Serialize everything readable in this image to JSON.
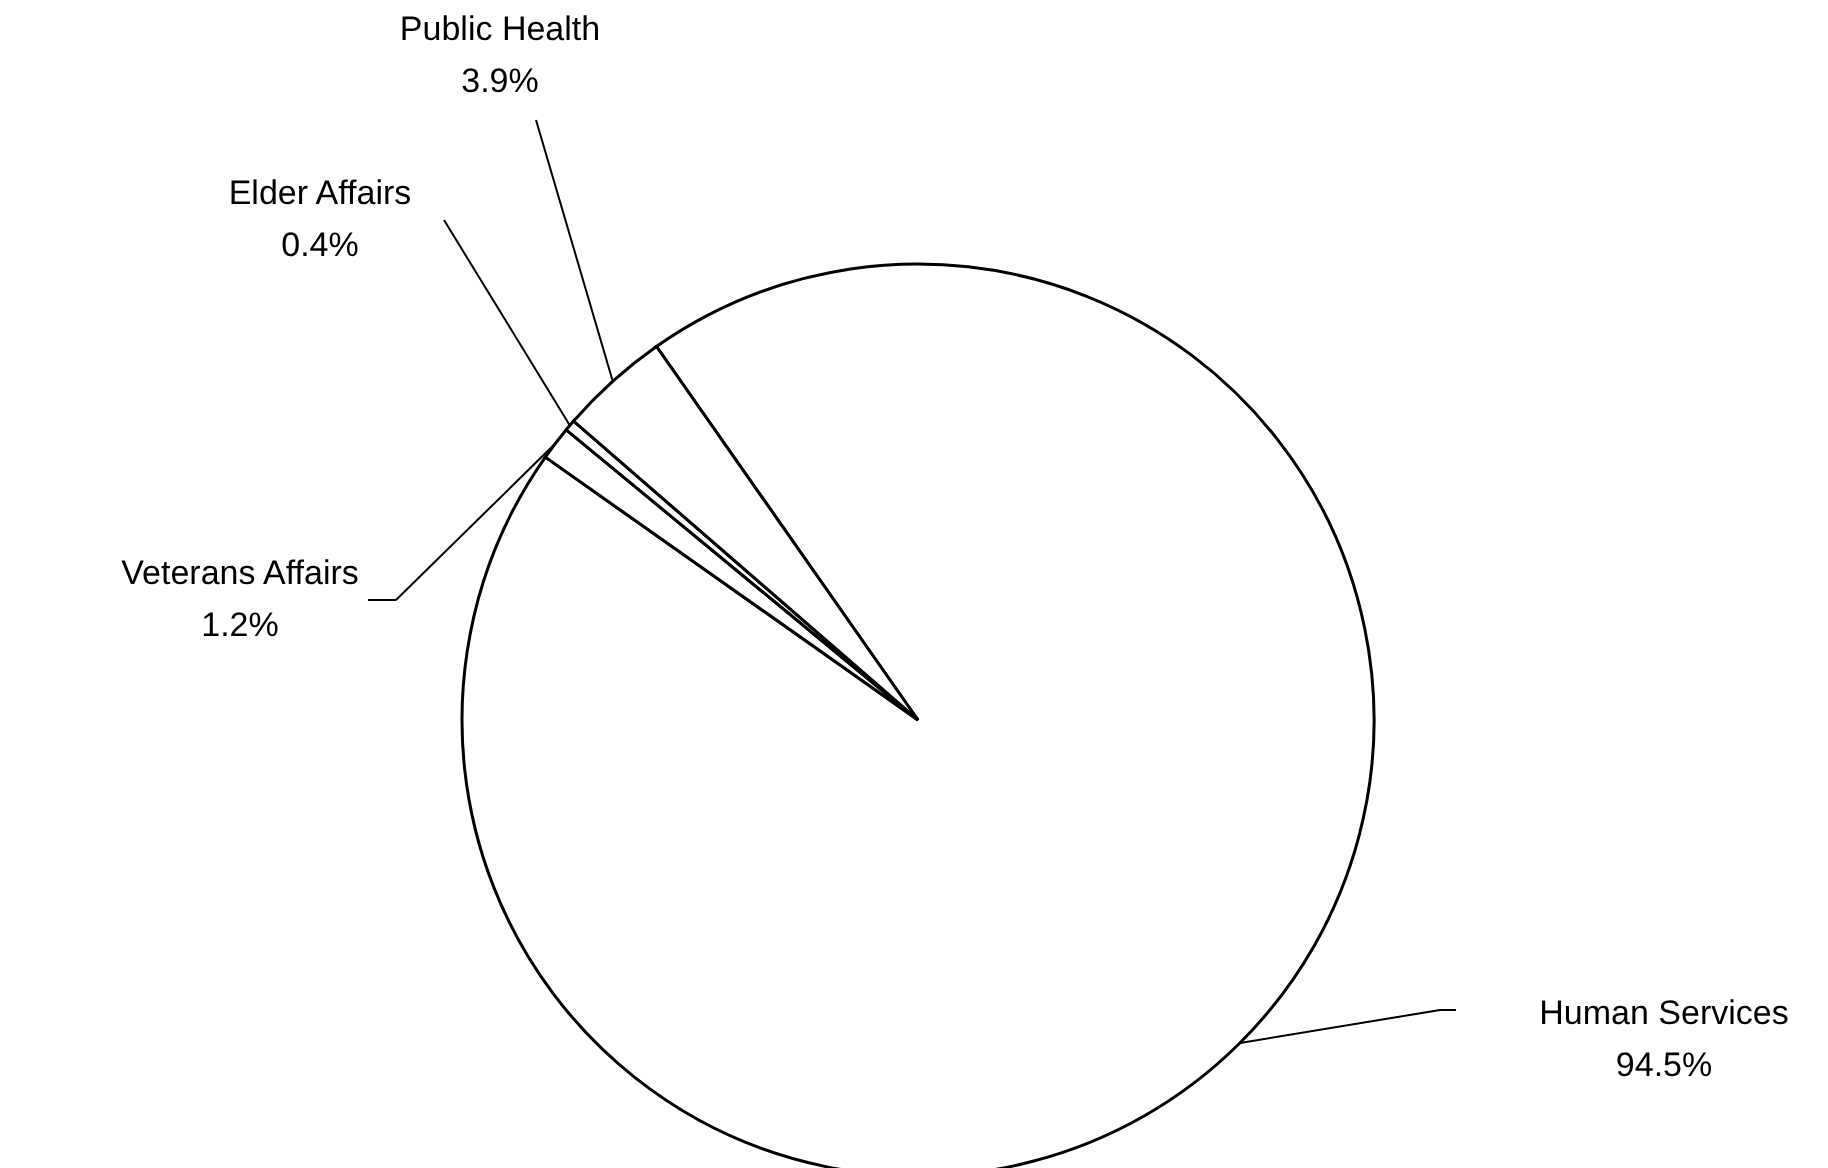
{
  "chart_data": {
    "type": "pie",
    "categories": [
      "Human Services",
      "Veterans Affairs",
      "Elder Affairs",
      "Public Health"
    ],
    "values": [
      94.5,
      1.2,
      0.4,
      3.9
    ],
    "colors": [
      "#ffffff",
      "#ffffff",
      "#ffffff",
      "#ffffff"
    ],
    "value_labels": [
      "94.5%",
      "1.2%",
      "0.4%",
      "3.9%"
    ]
  }
}
